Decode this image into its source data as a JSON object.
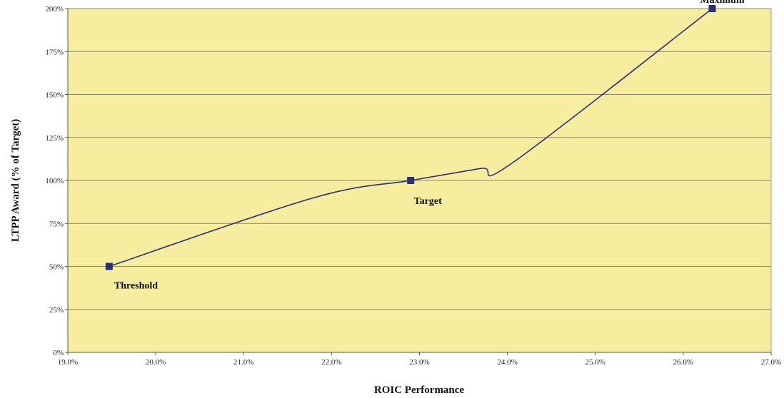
{
  "chart_data": {
    "type": "line",
    "xlabel": "ROIC Performance",
    "ylabel": "LTPP Award (% of Target)",
    "xlim": [
      19.0,
      27.0
    ],
    "ylim": [
      0,
      200
    ],
    "x_ticks": [
      "19.0%",
      "20.0%",
      "21.0%",
      "22.0%",
      "23.0%",
      "24.0%",
      "25.0%",
      "26.0%",
      "27.0%"
    ],
    "y_ticks": [
      "0%",
      "25%",
      "50%",
      "75%",
      "100%",
      "125%",
      "150%",
      "175%",
      "200%"
    ],
    "grid": "horizontal",
    "colors": {
      "plot_bg": "#F6EE9E",
      "line": "#2B2F7A",
      "marker": "#2B2F7A",
      "grid": "#8A8A6A"
    },
    "series": [
      {
        "curve": [
          {
            "x": 19.47,
            "y": 50
          },
          {
            "x": 21.8,
            "y": 90
          },
          {
            "x": 22.9,
            "y": 100
          },
          {
            "x": 23.7,
            "y": 107
          },
          {
            "x": 24.05,
            "y": 110
          },
          {
            "x": 26.33,
            "y": 200
          }
        ],
        "markers": [
          {
            "x": 19.47,
            "y": 50,
            "label": "Threshold"
          },
          {
            "x": 22.9,
            "y": 100,
            "label": "Target"
          },
          {
            "x": 26.33,
            "y": 200,
            "label": "Maximum"
          }
        ]
      }
    ]
  }
}
